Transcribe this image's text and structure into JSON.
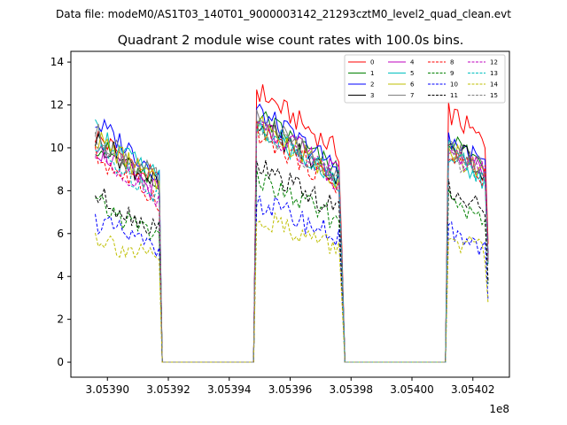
{
  "figure": {
    "suptitle": "Data file: modeM0/AS1T03_140T01_9000003142_21293cztM0_level2_quad_clean.evt"
  },
  "chart_data": {
    "type": "line",
    "title": "Quadrant 2 module wise count rates with 100.0s bins.",
    "xlabel": "",
    "ylabel": "",
    "x_offset_label": "1e8",
    "xlim": [
      3.053888,
      3.054032
    ],
    "ylim": [
      -0.7,
      14.5
    ],
    "x_scale_exponent": 8,
    "xticks": [
      3.0539,
      3.05392,
      3.05394,
      3.05396,
      3.05398,
      3.054,
      3.05402
    ],
    "xtick_labels": [
      "3.05390",
      "3.05392",
      "3.05394",
      "3.05396",
      "3.05398",
      "3.05400",
      "3.05402"
    ],
    "yticks": [
      0,
      2,
      4,
      6,
      8,
      10,
      12,
      14
    ],
    "ytick_labels": [
      "0",
      "2",
      "4",
      "6",
      "8",
      "10",
      "12",
      "14"
    ],
    "grid": false,
    "legend_position": "top-right",
    "segments": [
      {
        "x_start": 3.053896,
        "x_end": 3.0539178,
        "decay": 0.22
      },
      {
        "x_start": 3.0539483,
        "x_end": 3.0539778,
        "decay": 0.25
      },
      {
        "x_start": 3.0540112,
        "x_end": 3.0540254,
        "decay": 0.15
      }
    ],
    "gap_level": 0,
    "series": [
      {
        "name": "0",
        "color": "#ff0000",
        "dash": "solid",
        "levels": [
          10.6,
          12.8,
          11.8
        ]
      },
      {
        "name": "1",
        "color": "#008000",
        "dash": "solid",
        "levels": [
          10.2,
          11.6,
          10.6
        ]
      },
      {
        "name": "2",
        "color": "#0000ff",
        "dash": "solid",
        "levels": [
          11.2,
          11.8,
          10.6
        ]
      },
      {
        "name": "3",
        "color": "#000000",
        "dash": "solid",
        "levels": [
          10.4,
          11.2,
          10.3
        ]
      },
      {
        "name": "4",
        "color": "#bf00bf",
        "dash": "solid",
        "levels": [
          10.0,
          11.4,
          10.2
        ]
      },
      {
        "name": "5",
        "color": "#00bfbf",
        "dash": "solid",
        "levels": [
          10.8,
          11.0,
          9.8
        ]
      },
      {
        "name": "6",
        "color": "#bfbf00",
        "dash": "solid",
        "levels": [
          10.5,
          11.2,
          10.0
        ]
      },
      {
        "name": "7",
        "color": "#808080",
        "dash": "solid",
        "levels": [
          10.7,
          11.5,
          10.3
        ]
      },
      {
        "name": "8",
        "color": "#ff0000",
        "dash": "dashed",
        "levels": [
          9.6,
          10.8,
          10.0
        ]
      },
      {
        "name": "9",
        "color": "#008000",
        "dash": "dashed",
        "levels": [
          7.4,
          8.6,
          7.8
        ]
      },
      {
        "name": "10",
        "color": "#0000ff",
        "dash": "dashed",
        "levels": [
          6.6,
          7.6,
          6.2
        ]
      },
      {
        "name": "11",
        "color": "#000000",
        "dash": "dashed",
        "levels": [
          7.8,
          9.2,
          8.1
        ]
      },
      {
        "name": "12",
        "color": "#bf00bf",
        "dash": "dashed",
        "levels": [
          9.8,
          11.0,
          10.1
        ]
      },
      {
        "name": "13",
        "color": "#00bfbf",
        "dash": "dashed",
        "levels": [
          9.9,
          11.2,
          10.0
        ]
      },
      {
        "name": "14",
        "color": "#bfbf00",
        "dash": "dashed",
        "levels": [
          5.9,
          6.9,
          5.9
        ]
      },
      {
        "name": "15",
        "color": "#808080",
        "dash": "dashed",
        "levels": [
          10.2,
          11.1,
          9.9
        ]
      }
    ]
  }
}
